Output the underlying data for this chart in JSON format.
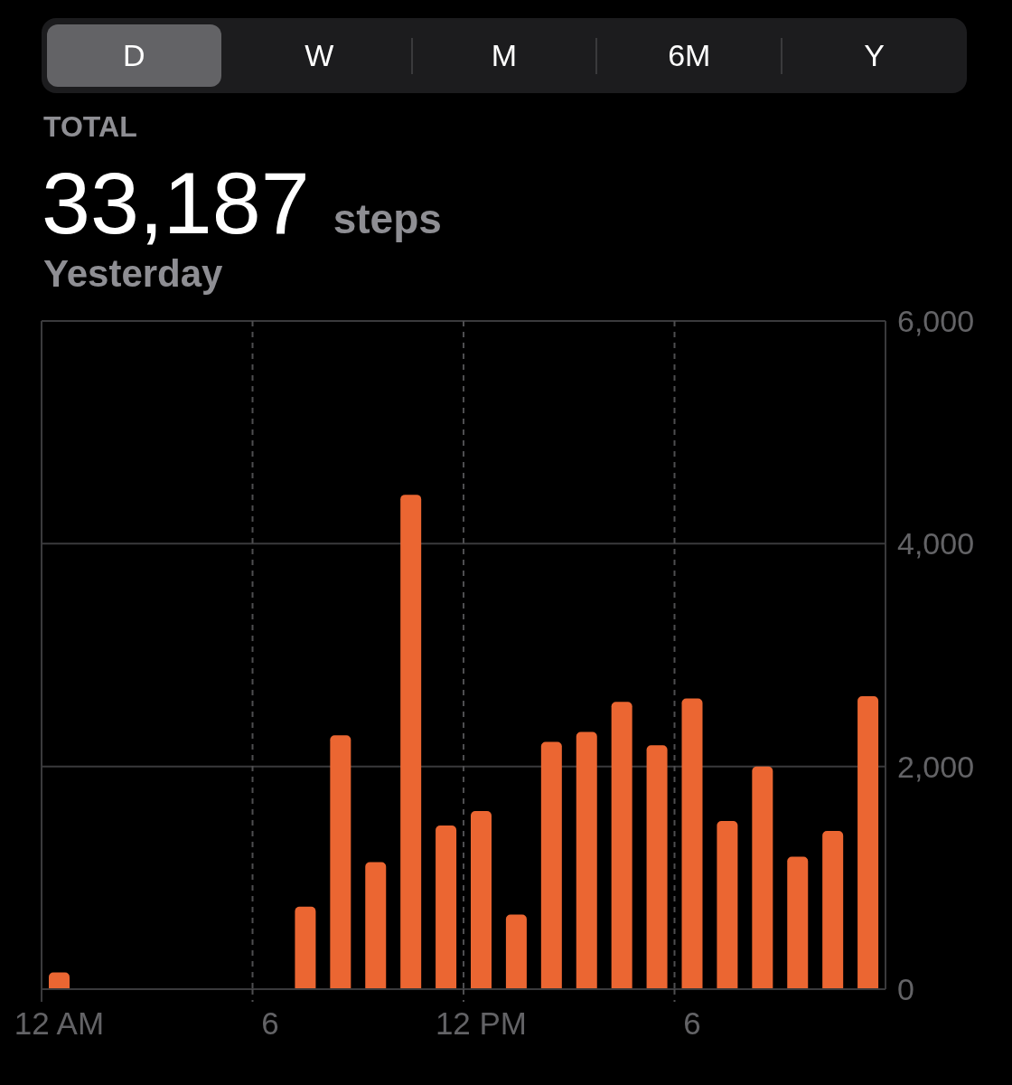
{
  "chart_data": {
    "type": "bar",
    "title": "33,187 steps",
    "subtitle": "Yesterday",
    "annotations": [
      "D",
      "W",
      "M",
      "6M",
      "Y",
      "TOTAL"
    ],
    "categories": [
      "12 AM",
      null,
      null,
      null,
      null,
      null,
      "6",
      null,
      null,
      null,
      null,
      null,
      "12 PM",
      null,
      null,
      null,
      null,
      null,
      "6",
      null,
      null,
      null,
      null,
      null
    ],
    "values": [
      150,
      null,
      null,
      null,
      null,
      null,
      null,
      740,
      2280,
      1140,
      4440,
      1470,
      1600,
      670,
      2220,
      2310,
      2580,
      2190,
      2610,
      1510,
      2000,
      1190,
      1420,
      2630
    ],
    "color": "#eb6632",
    "ylim": [
      0,
      6000
    ],
    "yticks": [
      0,
      {
        "value": 2000,
        "label": "2,000"
      },
      {
        "value": 4000,
        "label": "4,000"
      },
      {
        "value": 6000,
        "label": "6,000"
      }
    ],
    "grid": true
  }
}
